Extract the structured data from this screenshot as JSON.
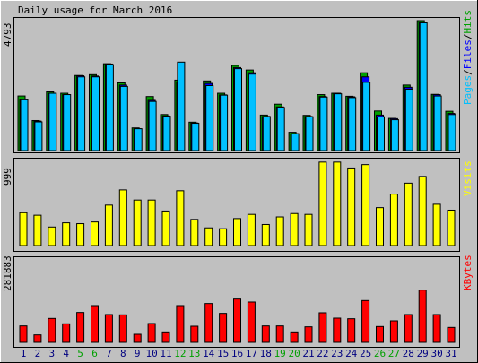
{
  "title": "Daily usage for March 2016",
  "days": [
    "1",
    "2",
    "3",
    "4",
    "5",
    "6",
    "7",
    "8",
    "9",
    "10",
    "11",
    "12",
    "13",
    "14",
    "15",
    "16",
    "17",
    "18",
    "19",
    "20",
    "21",
    "22",
    "23",
    "24",
    "25",
    "26",
    "27",
    "28",
    "29",
    "30",
    "31"
  ],
  "weekend_days": [
    "5",
    "6",
    "12",
    "13",
    "19",
    "20",
    "26",
    "27"
  ],
  "colors": {
    "background": "#c0c0c0",
    "hits": "#00a000",
    "files": "#0000ff",
    "pages": "#00c0ff",
    "visits": "#ffff00",
    "kbytes": "#ff0000",
    "weekday_label": "#000080",
    "weekend_label": "#00a000"
  },
  "chart_data": [
    {
      "type": "bar",
      "name": "hits-files-pages",
      "label_pages": "Pages",
      "label_files": "Files",
      "label_hits": "Hits",
      "label_sep": "/",
      "max_label": "4793",
      "ylim": [
        0,
        4793
      ],
      "series": [
        {
          "name": "Hits",
          "values": [
            2000,
            1100,
            2150,
            2100,
            2750,
            2780,
            3180,
            2480,
            830,
            1980,
            1320,
            2580,
            1040,
            2550,
            2100,
            3120,
            2950,
            1300,
            1700,
            670,
            1290,
            2050,
            2100,
            1990,
            2850,
            1450,
            1180,
            2400,
            4760,
            2060,
            1440
          ]
        },
        {
          "name": "Files",
          "values": [
            1860,
            1080,
            2100,
            2050,
            2740,
            2730,
            3170,
            2400,
            800,
            1840,
            1270,
            2520,
            1010,
            2460,
            2040,
            3040,
            2850,
            1250,
            1600,
            610,
            1250,
            1980,
            2100,
            1970,
            2700,
            1300,
            1170,
            2320,
            4700,
            2050,
            1360
          ]
        },
        {
          "name": "Pages",
          "values": [
            1860,
            1050,
            2100,
            2050,
            2700,
            2700,
            3150,
            2350,
            800,
            1800,
            1260,
            3240,
            1000,
            2380,
            2030,
            3000,
            2800,
            1250,
            1580,
            620,
            1240,
            1960,
            2080,
            1940,
            2500,
            1240,
            1130,
            2250,
            4680,
            2000,
            1320
          ]
        }
      ]
    },
    {
      "type": "bar",
      "name": "visits",
      "label": "Visits",
      "max_label": "999",
      "ylim": [
        0,
        999
      ],
      "series": [
        {
          "name": "Visits",
          "values": [
            390,
            360,
            220,
            270,
            260,
            280,
            480,
            660,
            540,
            540,
            410,
            650,
            310,
            210,
            200,
            320,
            370,
            250,
            340,
            380,
            370,
            990,
            990,
            920,
            960,
            450,
            610,
            740,
            820,
            490,
            420
          ]
        }
      ]
    },
    {
      "type": "bar",
      "name": "kbytes",
      "label": "KBytes",
      "max_label": "281883",
      "ylim": [
        0,
        281883
      ],
      "series": [
        {
          "name": "KBytes",
          "values": [
            55000,
            25000,
            80000,
            62000,
            100000,
            123000,
            93000,
            92000,
            27000,
            63000,
            35000,
            123000,
            54000,
            130000,
            97000,
            145000,
            135000,
            55000,
            55000,
            35000,
            52000,
            99000,
            81000,
            79000,
            140000,
            53000,
            72000,
            93000,
            175000,
            93000,
            50000
          ]
        }
      ]
    }
  ]
}
